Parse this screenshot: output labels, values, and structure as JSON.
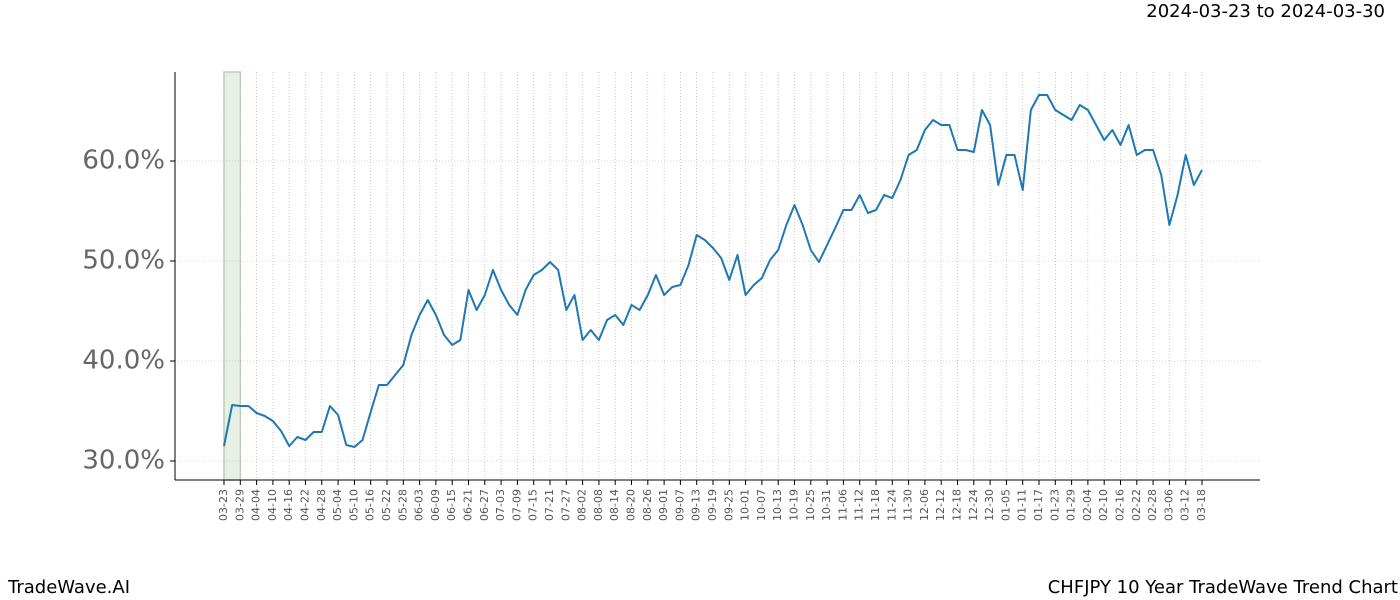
{
  "chart_data": {
    "type": "line",
    "title": "CHFJPY 10 Year TradeWave Trend Chart",
    "subtitle": "2024-03-23 to 2024-03-30",
    "footer": "TradeWave.AI",
    "highlight": [
      "03-23",
      "03-29"
    ],
    "categories": [
      "03-23",
      null,
      "03-29",
      null,
      "04-04",
      null,
      "04-10",
      null,
      "04-16",
      null,
      "04-22",
      null,
      "04-28",
      null,
      "05-04",
      null,
      "05-10",
      null,
      "05-16",
      null,
      "05-22",
      null,
      "05-28",
      null,
      "06-03",
      null,
      "06-09",
      null,
      "06-15",
      null,
      "06-21",
      null,
      "06-27",
      null,
      "07-03",
      null,
      "07-09",
      null,
      "07-15",
      null,
      "07-21",
      null,
      "07-27",
      null,
      "08-02",
      null,
      "08-08",
      null,
      "08-14",
      null,
      "08-20",
      null,
      "08-26",
      null,
      "09-01",
      null,
      "09-07",
      null,
      "09-13",
      null,
      "09-19",
      null,
      "09-25",
      null,
      "10-01",
      null,
      "10-07",
      null,
      "10-13",
      null,
      "10-19",
      null,
      "10-25",
      null,
      "10-31",
      null,
      "11-06",
      null,
      "11-12",
      null,
      "11-18",
      null,
      "11-24",
      null,
      "11-30",
      null,
      "12-06",
      null,
      "12-12",
      null,
      "12-18",
      null,
      "12-24",
      null,
      "12-30",
      null,
      "01-05",
      null,
      "01-11",
      null,
      "01-17",
      null,
      "01-23",
      null,
      "01-29",
      null,
      "02-04",
      null,
      "02-10",
      null,
      "02-16",
      null,
      "02-22",
      null,
      "02-28",
      null,
      "03-06",
      null,
      "03-12",
      null,
      "03-18"
    ],
    "series": [
      {
        "name": "CHFJPY",
        "color": "#1f77b4",
        "values": [
          31.5,
          35.6,
          35.5,
          35.5,
          34.8,
          34.5,
          34.0,
          33.0,
          31.5,
          32.4,
          32.1,
          32.9,
          32.9,
          35.5,
          34.6,
          31.6,
          31.4,
          32.1,
          34.9,
          37.6,
          37.6,
          38.6,
          39.6,
          42.6,
          44.6,
          46.1,
          44.6,
          42.6,
          41.6,
          42.1,
          47.1,
          45.1,
          46.6,
          49.1,
          47.1,
          45.6,
          44.6,
          47.1,
          48.6,
          49.1,
          49.9,
          49.1,
          45.1,
          46.6,
          42.1,
          43.1,
          42.1,
          44.1,
          44.6,
          43.6,
          45.6,
          45.1,
          46.6,
          48.6,
          46.6,
          47.4,
          47.6,
          49.6,
          52.6,
          52.1,
          51.3,
          50.3,
          48.1,
          50.6,
          46.6,
          47.6,
          48.3,
          50.1,
          51.1,
          53.6,
          55.6,
          53.6,
          51.1,
          49.9,
          51.6,
          53.3,
          55.1,
          55.1,
          56.6,
          54.8,
          55.1,
          56.6,
          56.3,
          58.1,
          60.6,
          61.1,
          63.1,
          64.1,
          63.6,
          63.6,
          61.1,
          61.1,
          60.9,
          65.1,
          63.6,
          57.6,
          60.6,
          60.6,
          57.1,
          65.1,
          66.6,
          66.6,
          65.1,
          64.6,
          64.1,
          65.6,
          65.1,
          63.6,
          62.1,
          63.1,
          61.6,
          63.6,
          60.6,
          61.1,
          61.1,
          58.6,
          53.6,
          56.6,
          60.6,
          57.6,
          59.1
        ]
      }
    ],
    "ylim": [
      28.1,
      68.9
    ],
    "yticks": [
      {
        "value": 30,
        "label": "30.0%"
      },
      {
        "value": 40,
        "label": "40.0%"
      },
      {
        "value": 50,
        "label": "50.0%"
      },
      {
        "value": 60,
        "label": "60.0%"
      }
    ],
    "grid": true
  }
}
